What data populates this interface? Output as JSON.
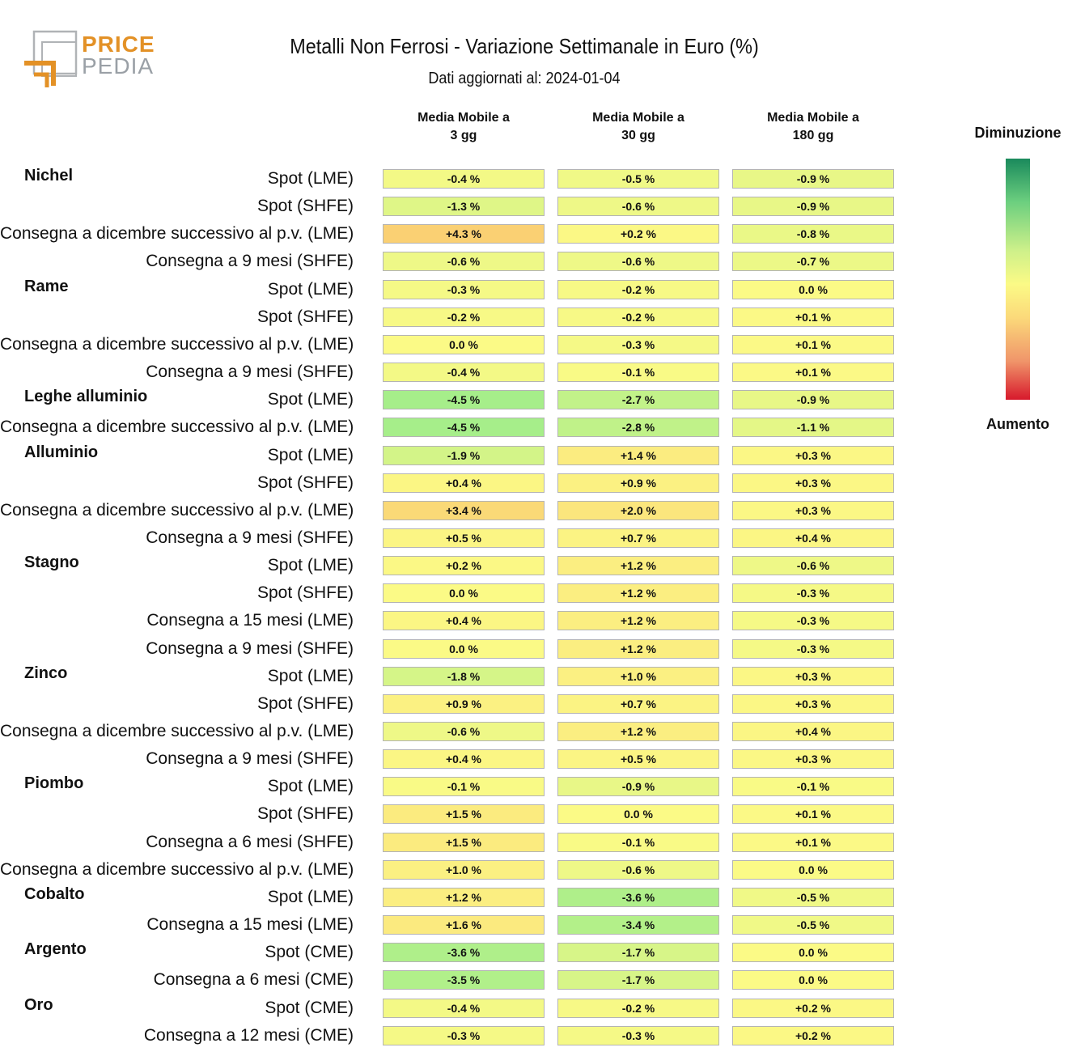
{
  "logo": {
    "line1": "PRICE",
    "line2": "PEDIA"
  },
  "title": "Metalli Non Ferrosi - Variazione Settimanale in Euro (%)",
  "subtitle": "Dati aggiornati al: 2024-01-04",
  "legend": {
    "top": "Diminuzione",
    "bottom": "Aumento",
    "colors": {
      "green": "#1a8a5c",
      "yellow": "#fbfa86",
      "red": "#d7192c"
    }
  },
  "chart_data": {
    "type": "table",
    "title": "Metalli Non Ferrosi - Variazione Settimanale in Euro (%)",
    "columns": [
      "Media Mobile a\n3 gg",
      "Media Mobile a\n30 gg",
      "Media Mobile a\n180 gg"
    ],
    "unit": "%",
    "groups": [
      {
        "name": "Nichel",
        "rows": [
          {
            "label": "Spot (LME)",
            "values": [
              -0.4,
              -0.5,
              -0.9
            ]
          },
          {
            "label": "Spot (SHFE)",
            "values": [
              -1.3,
              -0.6,
              -0.9
            ]
          },
          {
            "label": "Consegna a dicembre successivo al p.v. (LME)",
            "values": [
              4.3,
              0.2,
              -0.8
            ]
          },
          {
            "label": "Consegna a 9 mesi (SHFE)",
            "values": [
              -0.6,
              -0.6,
              -0.7
            ]
          }
        ]
      },
      {
        "name": "Rame",
        "rows": [
          {
            "label": "Spot (LME)",
            "values": [
              -0.3,
              -0.2,
              0.0
            ]
          },
          {
            "label": "Spot (SHFE)",
            "values": [
              -0.2,
              -0.2,
              0.1
            ]
          },
          {
            "label": "Consegna a dicembre successivo al p.v. (LME)",
            "values": [
              0.0,
              -0.3,
              0.1
            ]
          },
          {
            "label": "Consegna a 9 mesi (SHFE)",
            "values": [
              -0.4,
              -0.1,
              0.1
            ]
          }
        ]
      },
      {
        "name": "Leghe alluminio",
        "rows": [
          {
            "label": "Spot (LME)",
            "values": [
              -4.5,
              -2.7,
              -0.9
            ]
          },
          {
            "label": "Consegna a dicembre successivo al p.v. (LME)",
            "values": [
              -4.5,
              -2.8,
              -1.1
            ]
          }
        ]
      },
      {
        "name": "Alluminio",
        "rows": [
          {
            "label": "Spot (LME)",
            "values": [
              -1.9,
              1.4,
              0.3
            ]
          },
          {
            "label": "Spot (SHFE)",
            "values": [
              0.4,
              0.9,
              0.3
            ]
          },
          {
            "label": "Consegna a dicembre successivo al p.v. (LME)",
            "values": [
              3.4,
              2.0,
              0.3
            ]
          },
          {
            "label": "Consegna a 9 mesi (SHFE)",
            "values": [
              0.5,
              0.7,
              0.4
            ]
          }
        ]
      },
      {
        "name": "Stagno",
        "rows": [
          {
            "label": "Spot (LME)",
            "values": [
              0.2,
              1.2,
              -0.6
            ]
          },
          {
            "label": "Spot (SHFE)",
            "values": [
              0.0,
              1.2,
              -0.3
            ]
          },
          {
            "label": "Consegna a 15 mesi (LME)",
            "values": [
              0.4,
              1.2,
              -0.3
            ]
          },
          {
            "label": "Consegna a 9 mesi (SHFE)",
            "values": [
              0.0,
              1.2,
              -0.3
            ]
          }
        ]
      },
      {
        "name": "Zinco",
        "rows": [
          {
            "label": "Spot (LME)",
            "values": [
              -1.8,
              1.0,
              0.3
            ]
          },
          {
            "label": "Spot (SHFE)",
            "values": [
              0.9,
              0.7,
              0.3
            ]
          },
          {
            "label": "Consegna a dicembre successivo al p.v. (LME)",
            "values": [
              -0.6,
              1.2,
              0.4
            ]
          },
          {
            "label": "Consegna a 9 mesi (SHFE)",
            "values": [
              0.4,
              0.5,
              0.3
            ]
          }
        ]
      },
      {
        "name": "Piombo",
        "rows": [
          {
            "label": "Spot (LME)",
            "values": [
              -0.1,
              -0.9,
              -0.1
            ]
          },
          {
            "label": "Spot (SHFE)",
            "values": [
              1.5,
              0.0,
              0.1
            ]
          },
          {
            "label": "Consegna a 6 mesi (SHFE)",
            "values": [
              1.5,
              -0.1,
              0.1
            ]
          },
          {
            "label": "Consegna a dicembre successivo al p.v. (LME)",
            "values": [
              1.0,
              -0.6,
              0.0
            ]
          }
        ]
      },
      {
        "name": "Cobalto",
        "rows": [
          {
            "label": "Spot (LME)",
            "values": [
              1.2,
              -3.6,
              -0.5
            ]
          },
          {
            "label": "Consegna a 15 mesi (LME)",
            "values": [
              1.6,
              -3.4,
              -0.5
            ]
          }
        ]
      },
      {
        "name": "Argento",
        "rows": [
          {
            "label": "Spot (CME)",
            "values": [
              -3.6,
              -1.7,
              0.0
            ]
          },
          {
            "label": "Consegna a 6 mesi (CME)",
            "values": [
              -3.5,
              -1.7,
              0.0
            ]
          }
        ]
      },
      {
        "name": "Oro",
        "rows": [
          {
            "label": "Spot (CME)",
            "values": [
              -0.4,
              -0.2,
              0.2
            ]
          },
          {
            "label": "Consegna a 12 mesi (CME)",
            "values": [
              -0.3,
              -0.3,
              0.2
            ]
          }
        ]
      }
    ]
  }
}
